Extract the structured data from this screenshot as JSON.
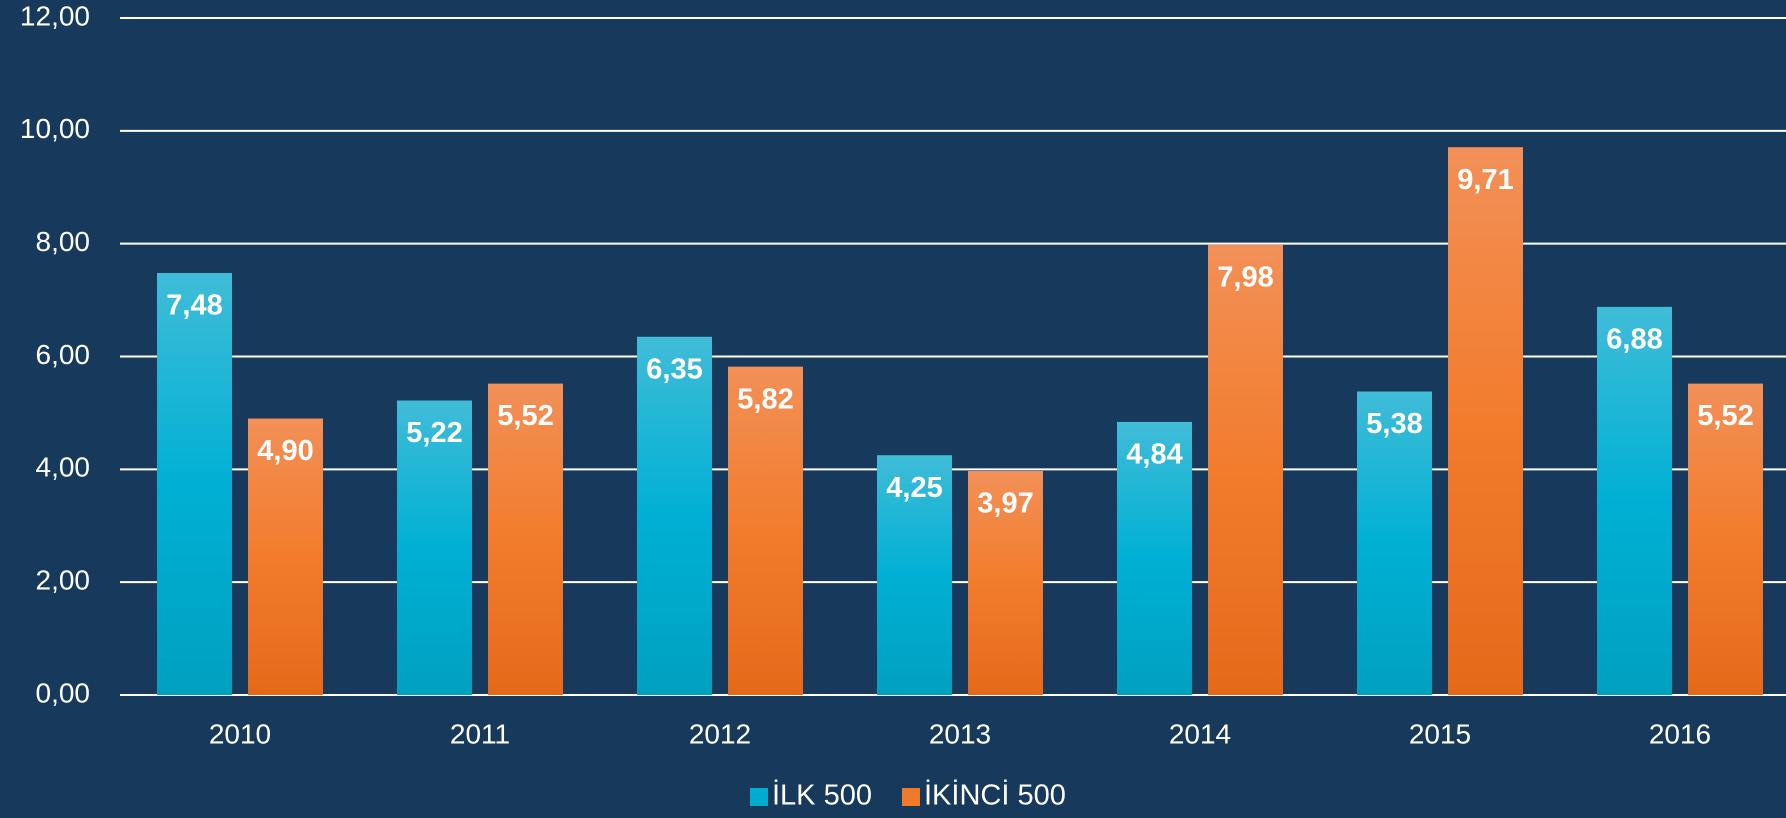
{
  "chart_data": {
    "type": "bar",
    "categories": [
      "2010",
      "2011",
      "2012",
      "2013",
      "2014",
      "2015",
      "2016"
    ],
    "series": [
      {
        "name": "İLK 500",
        "color": "#00acd0",
        "values": [
          7.48,
          5.22,
          6.35,
          4.25,
          4.84,
          5.38,
          6.88
        ],
        "value_labels": [
          "7,48",
          "5,22",
          "6,35",
          "4,25",
          "4,84",
          "5,38",
          "6,88"
        ]
      },
      {
        "name": "İKİNCİ 500",
        "color": "#f07a2a",
        "values": [
          4.9,
          5.52,
          5.82,
          3.97,
          7.98,
          9.71,
          5.52
        ],
        "value_labels": [
          "4,90",
          "5,52",
          "5,82",
          "3,97",
          "7,98",
          "9,71",
          "5,52"
        ]
      }
    ],
    "ylim": [
      0,
      12
    ],
    "yticks": [
      {
        "value": 0,
        "label": "0,00"
      },
      {
        "value": 2,
        "label": "2,00"
      },
      {
        "value": 4,
        "label": "4,00"
      },
      {
        "value": 6,
        "label": "6,00"
      },
      {
        "value": 8,
        "label": "8,00"
      },
      {
        "value": 10,
        "label": "10,00"
      },
      {
        "value": 12,
        "label": "12,00"
      }
    ],
    "grid": true,
    "legend": "bottom"
  }
}
